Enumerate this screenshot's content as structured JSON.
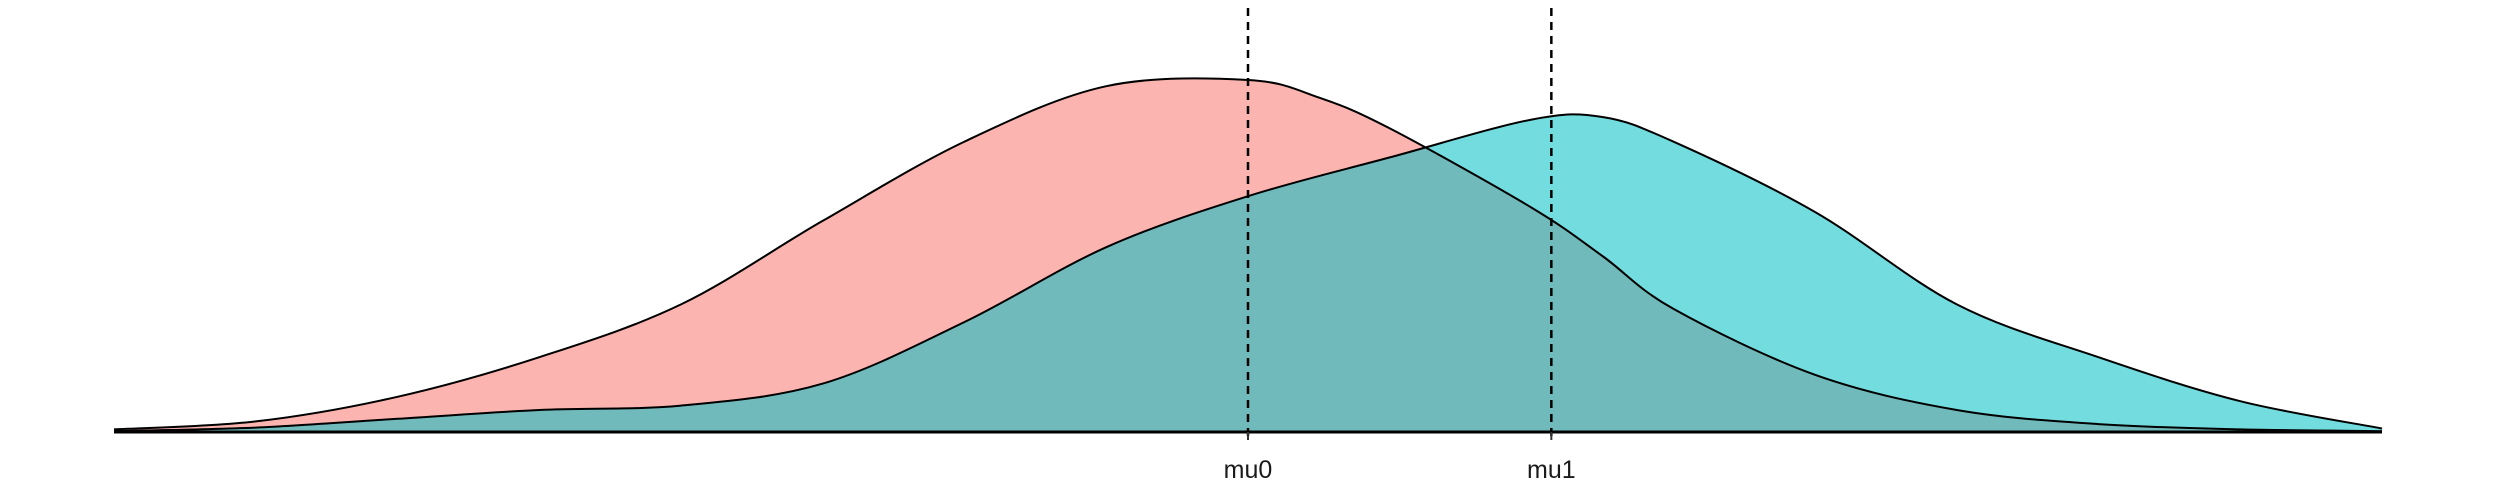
{
  "chart_data": {
    "type": "area",
    "title": "",
    "xlabel": "",
    "ylabel": "",
    "grid": false,
    "legend": "none",
    "xlim": [
      -4.0,
      4.0
    ],
    "ylim": [
      0,
      0.45
    ],
    "series": [
      {
        "fill": "#F8766D",
        "x": [
          -4.0,
          -3.5,
          -3.0,
          -2.5,
          -2.0,
          -1.5,
          -1.0,
          -0.5,
          0.0,
          0.25,
          0.5,
          1.0,
          1.25,
          1.5,
          2.0,
          2.5,
          3.0,
          3.5,
          4.0
        ],
        "y": [
          0.003,
          0.012,
          0.04,
          0.085,
          0.145,
          0.24,
          0.33,
          0.393,
          0.4,
          0.38,
          0.345,
          0.255,
          0.2,
          0.14,
          0.065,
          0.025,
          0.009,
          0.003,
          0.001
        ]
      },
      {
        "fill": "#00BFC4",
        "x": [
          -4.0,
          -3.5,
          -3.0,
          -2.5,
          -2.0,
          -1.5,
          -1.0,
          -0.5,
          0.0,
          0.5,
          1.0,
          1.25,
          1.5,
          2.0,
          2.5,
          3.0,
          3.5,
          4.0
        ],
        "y": [
          0.001,
          0.005,
          0.015,
          0.025,
          0.03,
          0.055,
          0.125,
          0.21,
          0.268,
          0.312,
          0.355,
          0.358,
          0.33,
          0.25,
          0.145,
          0.085,
          0.035,
          0.004
        ]
      }
    ],
    "vlines": [
      {
        "x": 0.0,
        "label": "mu0"
      },
      {
        "x": 1.07,
        "label": "mu1"
      }
    ]
  }
}
